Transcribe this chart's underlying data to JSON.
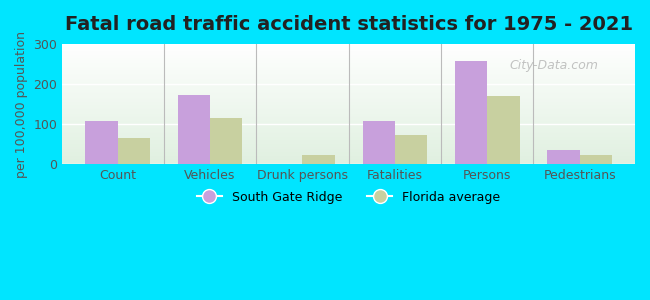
{
  "title": "Fatal road traffic accident statistics for 1975 - 2021",
  "ylabel": "per 100,000 population",
  "categories": [
    "Count",
    "Vehicles",
    "Drunk persons",
    "Fatalities",
    "Persons",
    "Pedestrians"
  ],
  "south_gate_ridge": [
    107,
    172,
    0,
    107,
    257,
    35
  ],
  "florida_average": [
    65,
    115,
    22,
    72,
    170,
    22
  ],
  "sgr_color": "#c8a0dc",
  "fl_color": "#c8d0a0",
  "ylim": [
    0,
    300
  ],
  "yticks": [
    0,
    100,
    200,
    300
  ],
  "bar_width": 0.35,
  "outer_bg": "#00e5ff",
  "legend_sgr": "South Gate Ridge",
  "legend_fl": "Florida average",
  "title_fontsize": 14,
  "axis_label_fontsize": 9,
  "tick_fontsize": 9,
  "watermark": "City-Data.com"
}
